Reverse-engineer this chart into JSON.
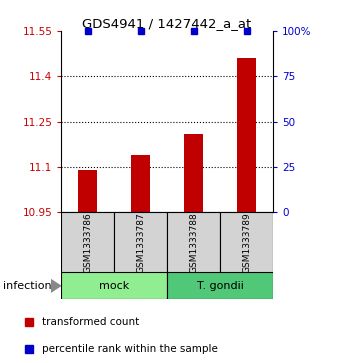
{
  "title": "GDS4941 / 1427442_a_at",
  "samples": [
    "GSM1333786",
    "GSM1333787",
    "GSM1333788",
    "GSM1333789"
  ],
  "bar_values": [
    11.09,
    11.14,
    11.21,
    11.46
  ],
  "percentile_values": [
    100,
    100,
    100,
    100
  ],
  "ylim_left": [
    10.95,
    11.55
  ],
  "ylim_right": [
    0,
    100
  ],
  "yticks_left": [
    10.95,
    11.1,
    11.25,
    11.4,
    11.55
  ],
  "yticks_right": [
    0,
    25,
    50,
    75,
    100
  ],
  "bar_color": "#c00000",
  "percentile_color": "#0000cc",
  "bar_width": 0.35,
  "groups": [
    {
      "label": "mock",
      "samples": [
        0,
        1
      ],
      "color": "#90ee90"
    },
    {
      "label": "T. gondii",
      "samples": [
        2,
        3
      ],
      "color": "#50c878"
    }
  ],
  "factor_label": "infection",
  "legend_items": [
    {
      "color": "#c00000",
      "label": "transformed count"
    },
    {
      "color": "#0000cc",
      "label": "percentile rank within the sample"
    }
  ]
}
